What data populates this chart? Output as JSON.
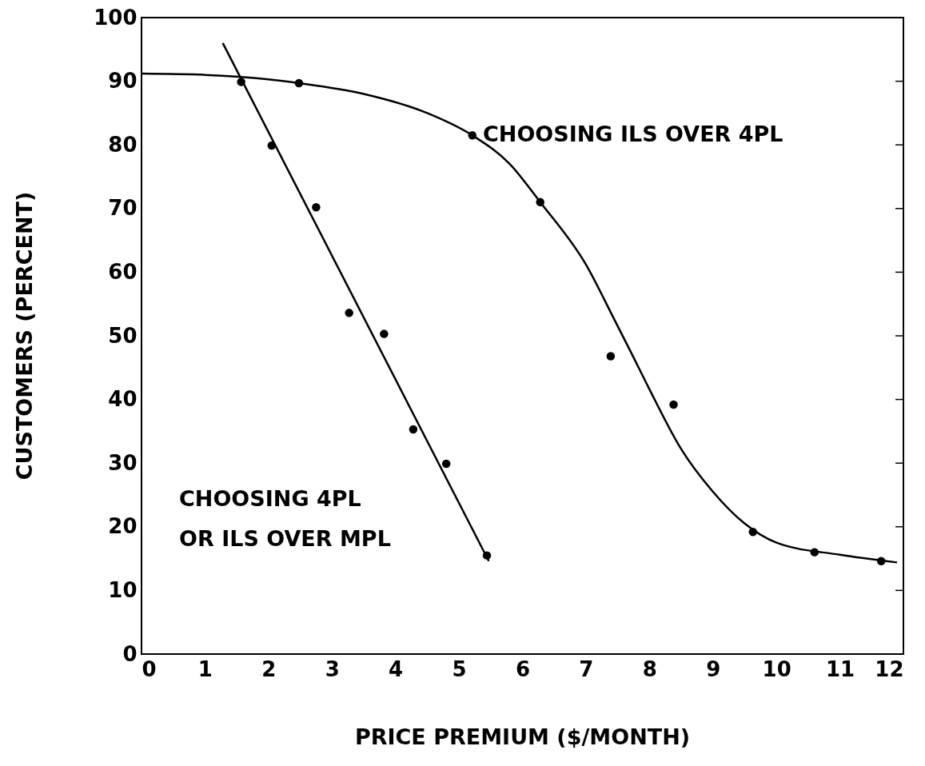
{
  "chart_data": {
    "type": "scatter",
    "xlabel": "PRICE PREMIUM ($/MONTH)",
    "ylabel": "CUSTOMERS (PERCENT)",
    "xlim": [
      0,
      12
    ],
    "xticks": [
      0,
      1,
      2,
      3,
      4,
      5,
      6,
      7,
      8,
      9,
      10,
      11,
      12
    ],
    "ylim": [
      0,
      100
    ],
    "yticks": [
      0,
      10,
      20,
      30,
      40,
      50,
      60,
      70,
      80,
      90,
      100
    ],
    "grid": false,
    "marker": "circle",
    "line_style": "solid",
    "series": [
      {
        "color": "#000000",
        "x": [
          1.57,
          2.05,
          2.75,
          3.27,
          3.82,
          4.28,
          4.8,
          5.44
        ],
        "values": [
          89.9,
          79.9,
          70.2,
          53.6,
          50.3,
          35.3,
          29.9,
          15.5
        ]
      },
      {
        "type": "line",
        "marker": "none",
        "color": "#000000",
        "x": [
          1.28,
          5.47
        ],
        "values": [
          96.0,
          14.6
        ]
      },
      {
        "color": "#000000",
        "x": [
          2.48,
          5.21,
          6.28,
          7.39,
          8.38,
          9.63,
          10.6,
          11.65
        ],
        "values": [
          89.7,
          81.5,
          71.0,
          46.8,
          39.2,
          19.2,
          16.0,
          14.6
        ]
      },
      {
        "type": "line",
        "marker": "none",
        "color": "#000000",
        "x": [
          0,
          1,
          2,
          2.48,
          3.5,
          4.5,
          5.21,
          5.8,
          6.28,
          7,
          7.45,
          7.7,
          8,
          8.5,
          9,
          9.5,
          10,
          11,
          11.9
        ],
        "values": [
          91.2,
          91.0,
          90.3,
          89.7,
          88.0,
          85.0,
          81.5,
          77.0,
          71.0,
          61.2,
          52.5,
          47.6,
          41.6,
          32.2,
          25.5,
          20.5,
          17.5,
          15.6,
          14.4
        ]
      }
    ],
    "annotations": [
      {
        "text": "CHOOSING ILS OVER 4PL",
        "x": 5.2,
        "y": 81.5
      },
      "CHOOSING 4PL\nOR ILS OVER MPL"
    ]
  }
}
